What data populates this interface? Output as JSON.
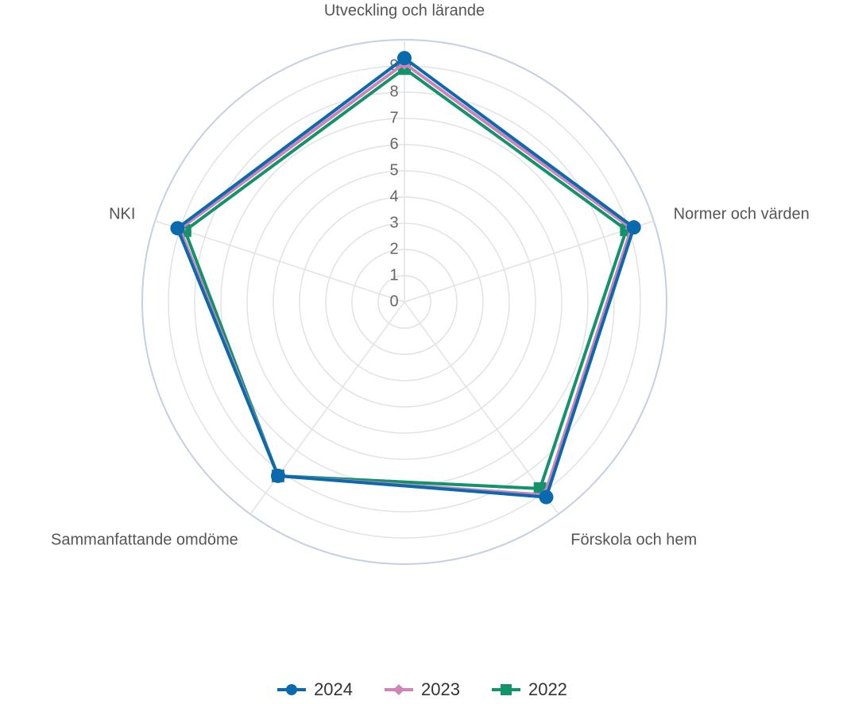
{
  "chart_data": {
    "type": "radar",
    "axes": [
      "Utveckling och lärande",
      "Normer och värden",
      "Förskola och hem",
      "Sammanfattande omdöme",
      "NKI"
    ],
    "ticks": [
      "0",
      "1",
      "2",
      "3",
      "4",
      "5",
      "6",
      "7",
      "8",
      "9"
    ],
    "rmax": 10,
    "grid": true,
    "legend_position": "bottom",
    "series": [
      {
        "name": "2024",
        "values": [
          9.3,
          9.2,
          9.2,
          8.2,
          9.1
        ],
        "color": "#0a6aad",
        "marker": "circle"
      },
      {
        "name": "2023",
        "values": [
          9.1,
          9.1,
          9.1,
          8.2,
          9.0
        ],
        "color": "#d083b8",
        "marker": "diamond"
      },
      {
        "name": "2022",
        "values": [
          8.9,
          8.9,
          8.8,
          8.2,
          8.8
        ],
        "color": "#13936a",
        "marker": "square"
      }
    ]
  },
  "legend": {
    "items": [
      {
        "label": "2024"
      },
      {
        "label": "2023"
      },
      {
        "label": "2022"
      }
    ]
  }
}
